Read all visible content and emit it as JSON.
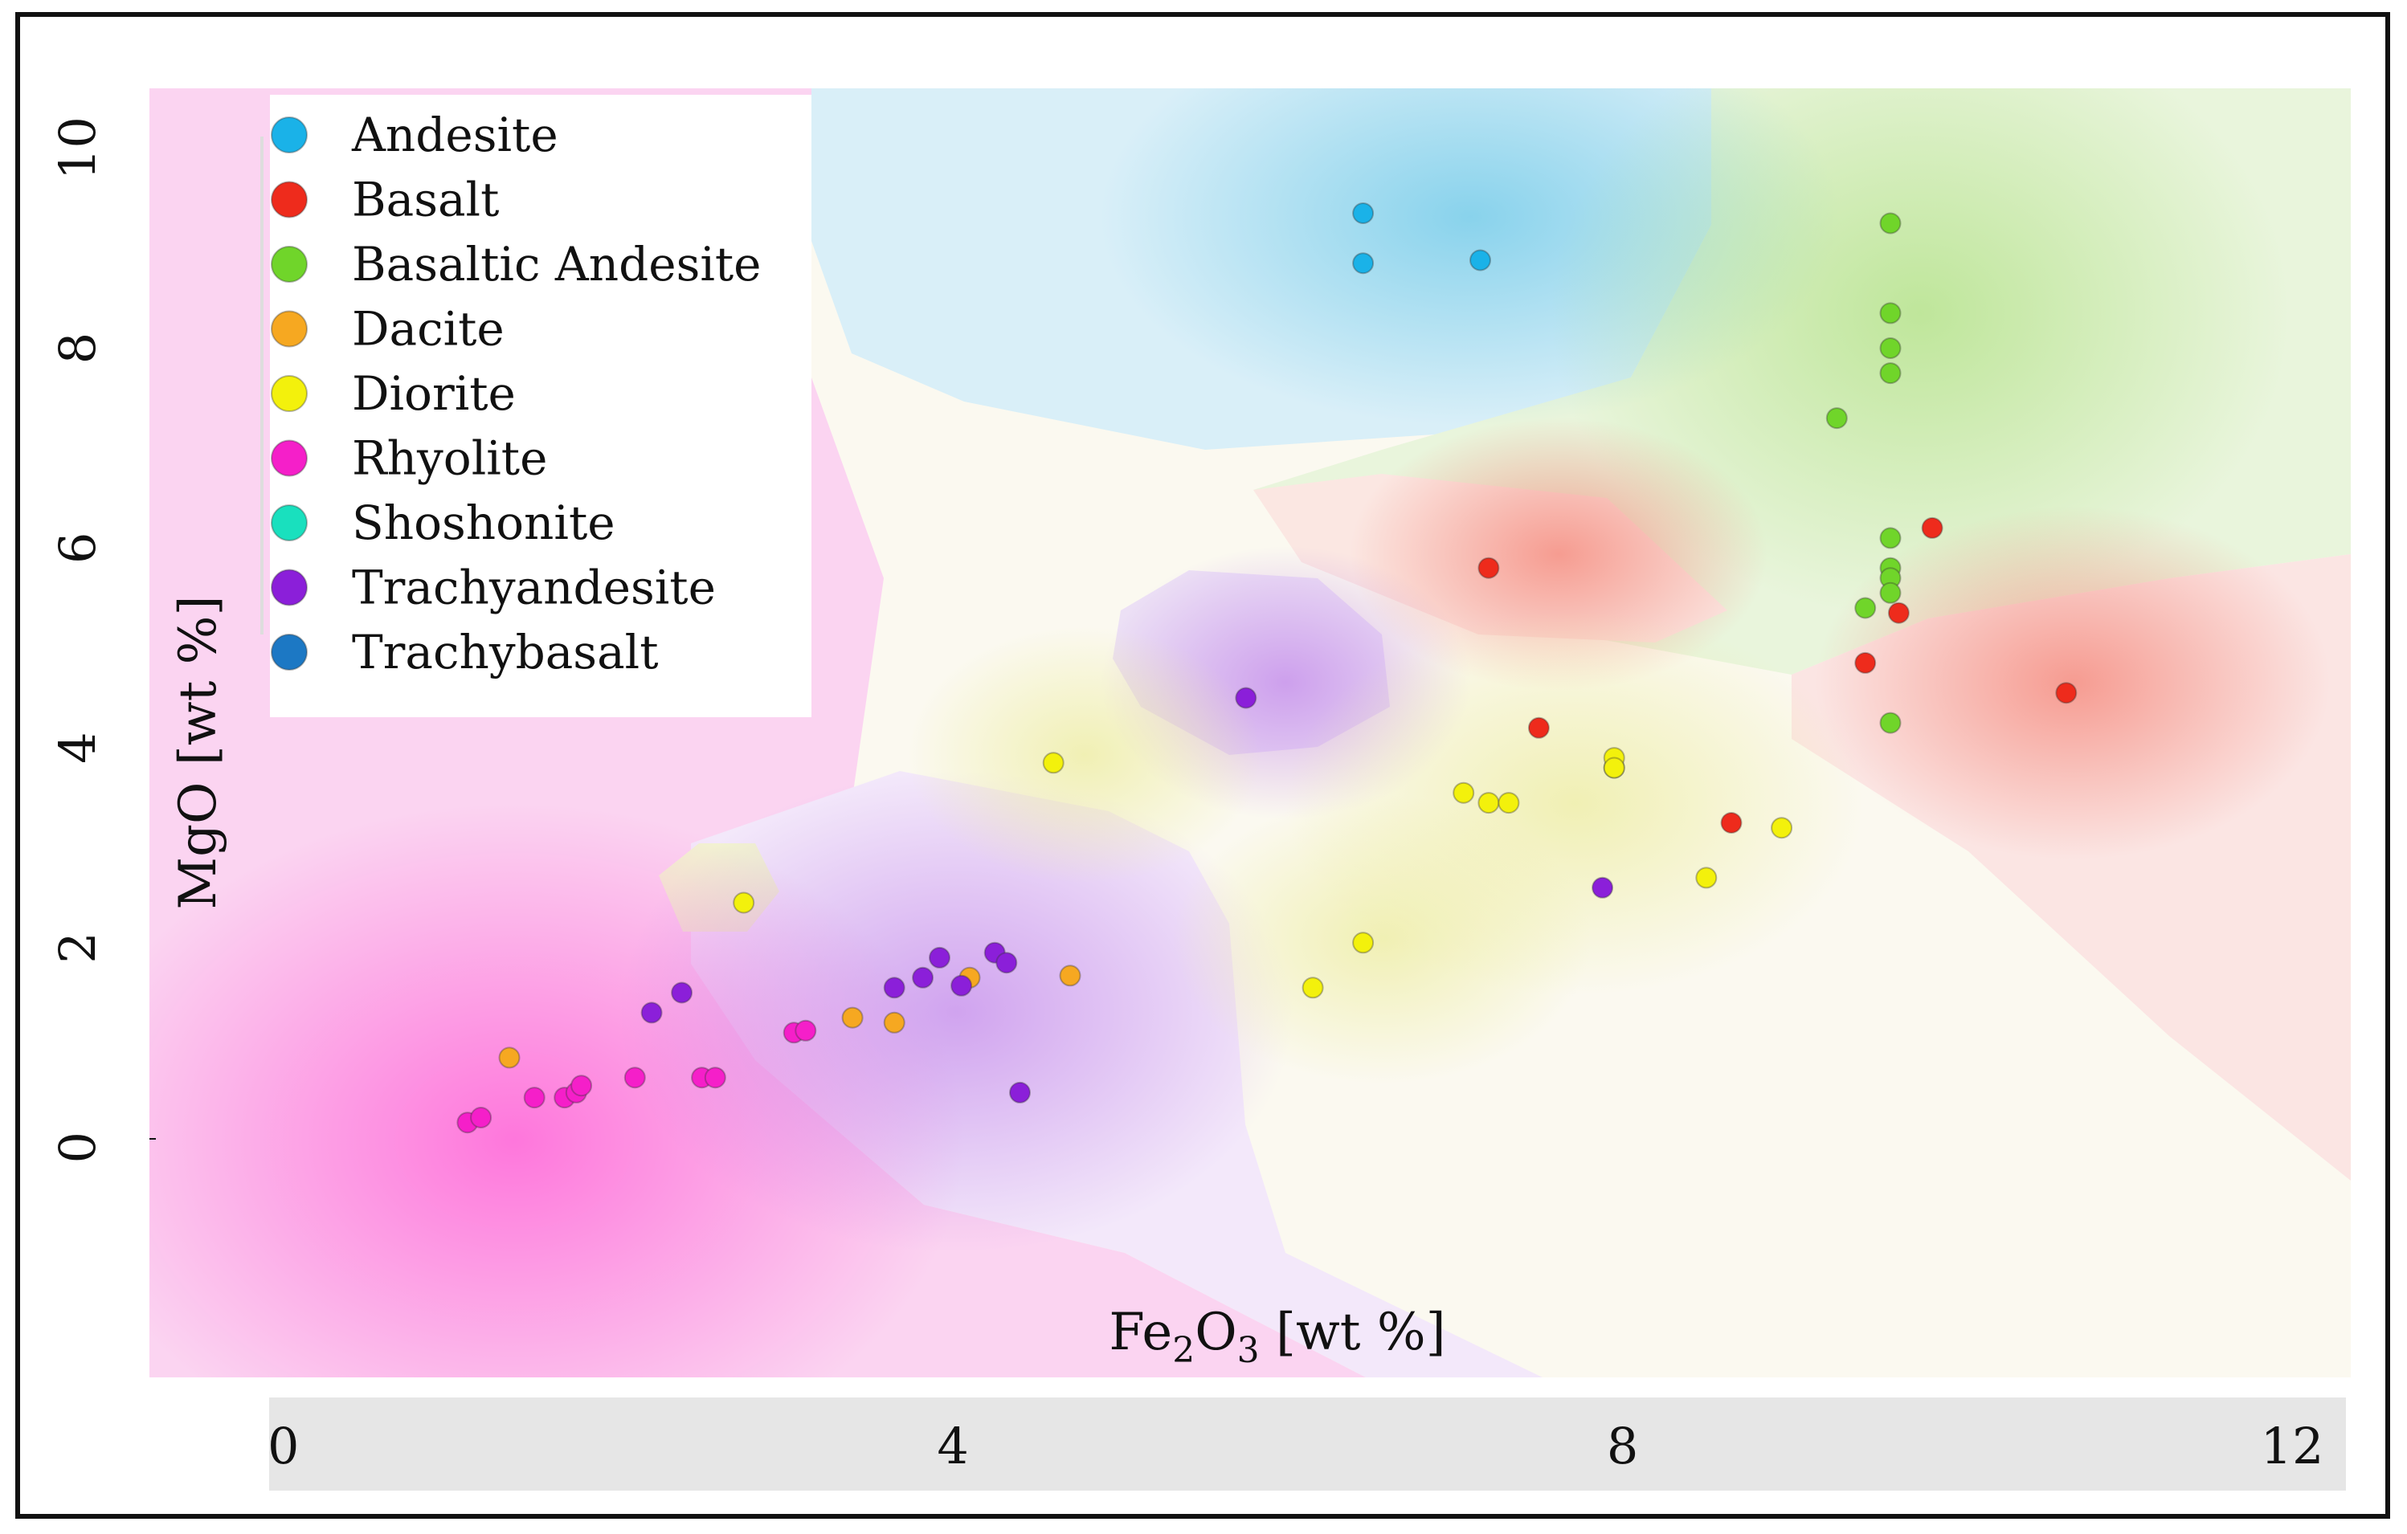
{
  "chart_data": {
    "type": "scatter",
    "title": "",
    "xlabel": "Fe₂O₃ [wt %]",
    "ylabel": "MgO [wt %]",
    "xlim": [
      -0.8,
      12.35
    ],
    "ylim": [
      -2.3,
      10.6
    ],
    "grid": false,
    "legend_position": "top-left",
    "x_ticks": [
      {
        "value": 0,
        "label": "0"
      },
      {
        "value": 4,
        "label": "4"
      },
      {
        "value": 8,
        "label": "8"
      },
      {
        "value": 12,
        "label": "12"
      }
    ],
    "y_ticks": [
      {
        "value": 0,
        "label": "0"
      },
      {
        "value": 2,
        "label": "2"
      },
      {
        "value": 4,
        "label": "4"
      },
      {
        "value": 6,
        "label": "6"
      },
      {
        "value": 8,
        "label": "8"
      },
      {
        "value": 10,
        "label": "10"
      }
    ],
    "background": "decision regions of a classifier, shaded by predicted rock class",
    "series": [
      {
        "name": "Andesite",
        "color": "#1ab2e8",
        "points": [
          [
            6.45,
            9.35
          ],
          [
            6.45,
            8.85
          ],
          [
            7.15,
            8.88
          ]
        ]
      },
      {
        "name": "Basalt",
        "color": "#ee2b1c",
        "points": [
          [
            7.2,
            5.8
          ],
          [
            7.5,
            4.2
          ],
          [
            8.65,
            3.25
          ],
          [
            9.45,
            4.85
          ],
          [
            9.65,
            5.35
          ],
          [
            9.85,
            6.2
          ],
          [
            10.65,
            4.55
          ]
        ]
      },
      {
        "name": "Basaltic Andesite",
        "color": "#70d52a",
        "points": [
          [
            9.6,
            9.25
          ],
          [
            9.6,
            8.35
          ],
          [
            9.6,
            8.0
          ],
          [
            9.6,
            7.75
          ],
          [
            9.28,
            7.3
          ],
          [
            9.6,
            6.1
          ],
          [
            9.6,
            5.8
          ],
          [
            9.6,
            5.7
          ],
          [
            9.6,
            5.55
          ],
          [
            9.45,
            5.4
          ],
          [
            9.6,
            4.25
          ],
          [
            7.95,
            3.8
          ]
        ]
      },
      {
        "name": "Dacite",
        "color": "#f6a821",
        "points": [
          [
            1.35,
            0.9
          ],
          [
            3.4,
            1.3
          ],
          [
            3.65,
            1.25
          ],
          [
            4.1,
            1.7
          ],
          [
            4.7,
            1.72
          ]
        ]
      },
      {
        "name": "Diorite",
        "color": "#f3f10c",
        "points": [
          [
            2.75,
            2.45
          ],
          [
            4.6,
            3.85
          ],
          [
            6.15,
            1.6
          ],
          [
            6.45,
            2.05
          ],
          [
            7.05,
            3.55
          ],
          [
            7.2,
            3.45
          ],
          [
            7.32,
            3.45
          ],
          [
            7.95,
            3.9
          ],
          [
            7.95,
            3.8
          ],
          [
            8.5,
            2.7
          ],
          [
            8.95,
            3.2
          ]
        ]
      },
      {
        "name": "Rhyolite",
        "color": "#f51fc9",
        "points": [
          [
            1.1,
            0.25
          ],
          [
            1.18,
            0.3
          ],
          [
            1.5,
            0.5
          ],
          [
            1.68,
            0.5
          ],
          [
            1.75,
            0.55
          ],
          [
            1.78,
            0.62
          ],
          [
            2.1,
            0.7
          ],
          [
            2.5,
            0.7
          ],
          [
            2.58,
            0.7
          ],
          [
            3.05,
            1.15
          ],
          [
            3.12,
            1.17
          ]
        ]
      },
      {
        "name": "Shoshonite",
        "color": "#19e0be",
        "points": []
      },
      {
        "name": "Trachyandesite",
        "color": "#8b1fd9",
        "points": [
          [
            2.2,
            1.35
          ],
          [
            2.38,
            1.55
          ],
          [
            3.65,
            1.6
          ],
          [
            3.82,
            1.7
          ],
          [
            3.92,
            1.9
          ],
          [
            4.05,
            1.62
          ],
          [
            4.25,
            1.95
          ],
          [
            4.32,
            1.85
          ],
          [
            4.4,
            0.55
          ],
          [
            5.75,
            4.5
          ],
          [
            7.88,
            2.6
          ]
        ]
      },
      {
        "name": "Trachybasalt",
        "color": "#1c78c4",
        "points": []
      }
    ]
  }
}
